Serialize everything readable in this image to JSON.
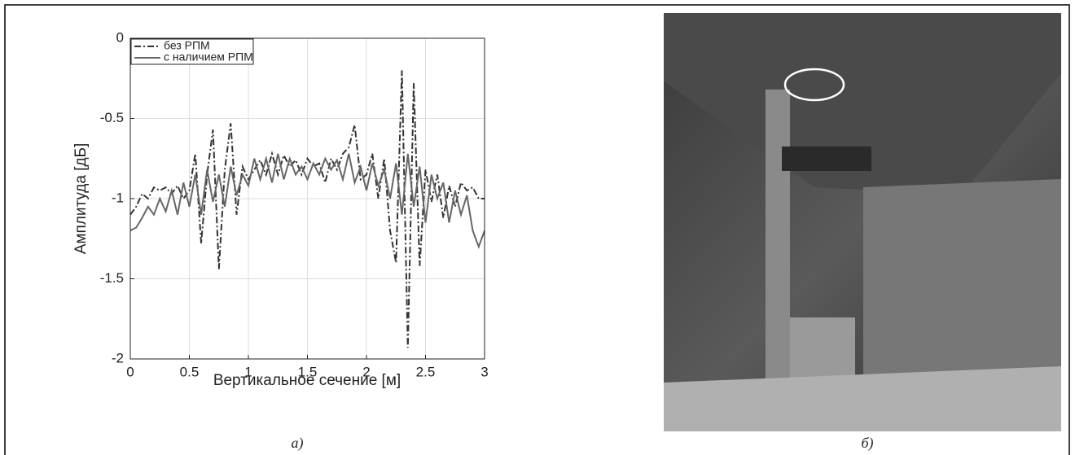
{
  "chart_data": {
    "type": "line",
    "xlabel": "Вертикальное сечение [м]",
    "ylabel": "Амплитуда [дБ]",
    "caption": "а)",
    "x": [
      0,
      0.05,
      0.1,
      0.15,
      0.2,
      0.25,
      0.3,
      0.35,
      0.4,
      0.45,
      0.5,
      0.55,
      0.6,
      0.65,
      0.7,
      0.75,
      0.8,
      0.85,
      0.9,
      0.95,
      1,
      1.05,
      1.1,
      1.15,
      1.2,
      1.25,
      1.3,
      1.35,
      1.4,
      1.45,
      1.5,
      1.55,
      1.6,
      1.65,
      1.7,
      1.75,
      1.8,
      1.85,
      1.9,
      1.95,
      2,
      2.05,
      2.1,
      2.15,
      2.2,
      2.25,
      2.3,
      2.35,
      2.4,
      2.45,
      2.5,
      2.55,
      2.6,
      2.65,
      2.7,
      2.75,
      2.8,
      2.85,
      2.9,
      2.95,
      3
    ],
    "series": [
      {
        "name": "без РПМ",
        "color": "#333333",
        "dash": "dashdot",
        "values": [
          -1.1,
          -1.05,
          -0.97,
          -1.0,
          -0.93,
          -0.95,
          -0.93,
          -0.97,
          -0.92,
          -1.0,
          -0.95,
          -0.72,
          -1.28,
          -0.85,
          -0.57,
          -1.44,
          -0.82,
          -0.53,
          -1.1,
          -0.8,
          -0.88,
          -0.82,
          -0.76,
          -0.85,
          -0.72,
          -0.85,
          -0.73,
          -0.8,
          -0.76,
          -0.85,
          -0.75,
          -0.8,
          -0.78,
          -0.9,
          -0.75,
          -0.82,
          -0.72,
          -0.68,
          -0.54,
          -0.88,
          -0.85,
          -0.72,
          -1.0,
          -0.75,
          -1.2,
          -1.4,
          -0.2,
          -1.93,
          -0.28,
          -1.42,
          -0.82,
          -1.02,
          -0.85,
          -1.12,
          -0.92,
          -1.05,
          -0.9,
          -0.95,
          -0.93,
          -1.0,
          -1.0
        ]
      },
      {
        "name": "с наличием РПМ",
        "color": "#666666",
        "dash": "solid",
        "values": [
          -1.2,
          -1.18,
          -1.12,
          -1.05,
          -1.1,
          -1.0,
          -1.08,
          -0.95,
          -1.1,
          -0.9,
          -1.05,
          -0.85,
          -1.1,
          -0.82,
          -1.02,
          -0.85,
          -1.05,
          -0.8,
          -0.98,
          -0.85,
          -0.92,
          -0.75,
          -0.88,
          -0.75,
          -0.9,
          -0.72,
          -0.88,
          -0.75,
          -0.85,
          -0.8,
          -0.88,
          -0.78,
          -0.85,
          -0.75,
          -0.82,
          -0.76,
          -0.88,
          -0.72,
          -0.9,
          -0.8,
          -0.95,
          -0.78,
          -0.92,
          -0.82,
          -1.0,
          -0.78,
          -1.1,
          -0.72,
          -1.05,
          -0.8,
          -1.15,
          -0.85,
          -1.0,
          -0.9,
          -1.15,
          -0.95,
          -1.1,
          -0.98,
          -1.2,
          -1.3,
          -1.2
        ]
      }
    ],
    "xlim": [
      0,
      3
    ],
    "xticks": [
      0,
      0.5,
      1,
      1.5,
      2,
      2.5,
      3
    ],
    "ylim": [
      -2,
      0
    ],
    "yticks": [
      0,
      -0.5,
      -1,
      -1.5,
      -2
    ],
    "grid": true,
    "legend": "upper-left"
  },
  "photo": {
    "caption": "б)"
  }
}
